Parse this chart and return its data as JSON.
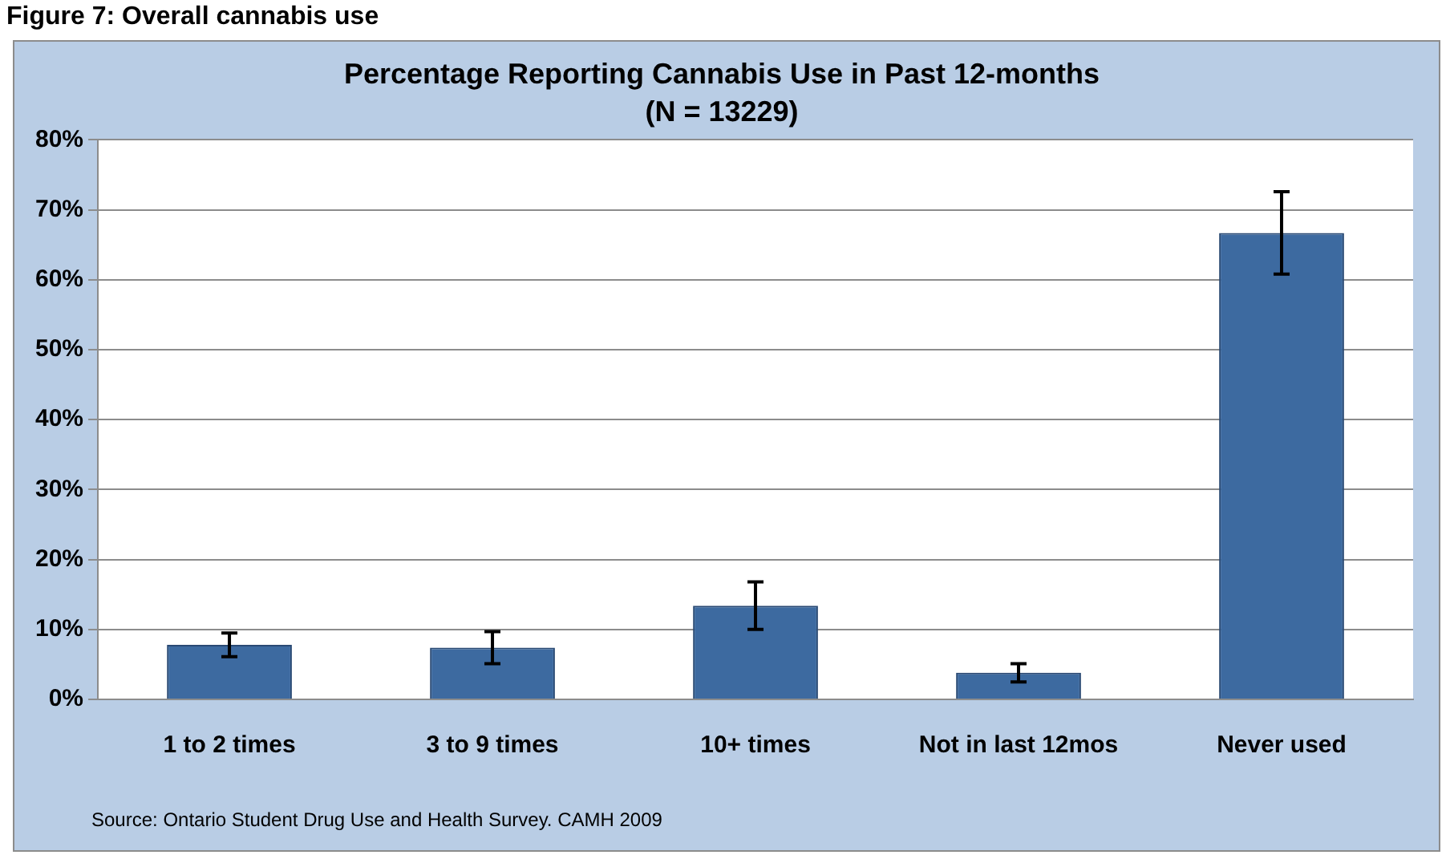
{
  "chart_data": {
    "type": "bar",
    "title": "Percentage Reporting Cannabis Use in Past 12-months",
    "subtitle": "(N = 13229)",
    "categories": [
      "1 to 2 times",
      "3 to 9 times",
      "10+ times",
      "Not in last 12mos",
      "Never used"
    ],
    "values": [
      7.8,
      7.4,
      13.4,
      3.8,
      66.7
    ],
    "errors": [
      1.7,
      2.3,
      3.4,
      1.3,
      5.9
    ],
    "color": "#3d6aa0",
    "ylim": [
      0,
      80
    ],
    "yticks": [
      {
        "value": 0,
        "label": "0%"
      },
      {
        "value": 10,
        "label": "10%"
      },
      {
        "value": 20,
        "label": "20%"
      },
      {
        "value": 30,
        "label": "30%"
      },
      {
        "value": 40,
        "label": "40%"
      },
      {
        "value": 50,
        "label": "50%"
      },
      {
        "value": 60,
        "label": "60%"
      },
      {
        "value": 70,
        "label": "70%"
      },
      {
        "value": 80,
        "label": "80%"
      }
    ],
    "grid": "y",
    "annotations": [
      "Figure 7: Overall cannabis use",
      "Source: Ontario Student Drug Use and Health Survey. CAMH 2009"
    ]
  }
}
